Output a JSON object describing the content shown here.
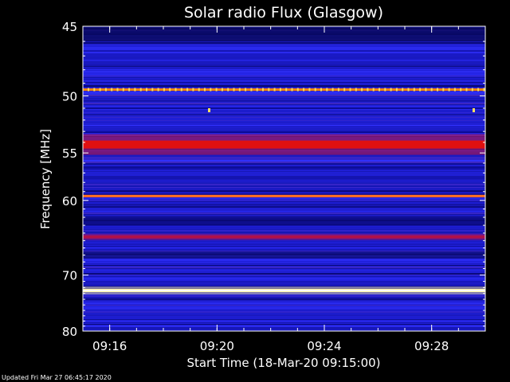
{
  "chart_data": {
    "type": "heatmap",
    "title": "Solar radio Flux (Glasgow)",
    "xlabel": "Start Time (18-Mar-20 09:15:00)",
    "ylabel": "Frequency [MHz]",
    "x_ticks": [
      "09:16",
      "09:20",
      "09:24",
      "09:28"
    ],
    "x_range": [
      "09:15:00",
      "09:30:00"
    ],
    "y_ticks": [
      45,
      50,
      55,
      60,
      70,
      80
    ],
    "y_range": [
      45,
      80
    ],
    "y_scale": "reciprocal",
    "interference_bands": [
      {
        "freq_mhz": 49.5,
        "color": "#ff8800"
      },
      {
        "freq_mhz": 54.2,
        "color": "#e01010"
      },
      {
        "freq_mhz": 59.5,
        "color": "#ff7020"
      },
      {
        "freq_mhz": 64.5,
        "color": "#b0104a"
      },
      {
        "freq_mhz": 72.5,
        "color": "#fff6a0"
      }
    ],
    "colors": {
      "background": "#000000",
      "base": "#1f1fd8",
      "axis": "#ffffff"
    }
  },
  "footer": "Updated Fri Mar 27 06:45:17 2020"
}
